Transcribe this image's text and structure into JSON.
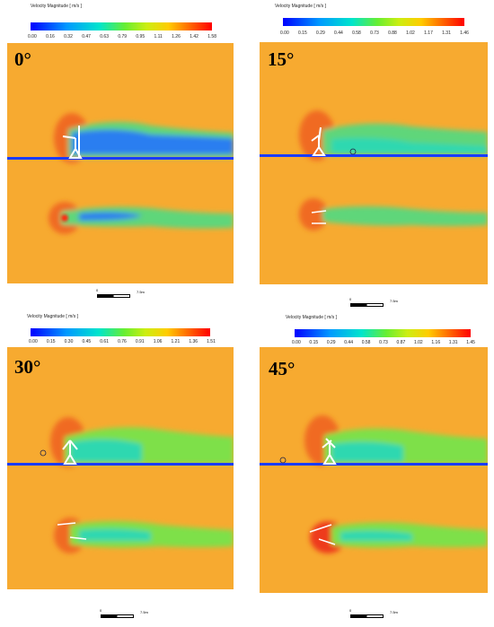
{
  "panels": [
    {
      "id": "p0",
      "angle_label": "0°",
      "colorbar": {
        "title": "Velocity Magnitude [ m/s ]",
        "ticks": [
          "0.00",
          "0.16",
          "0.32",
          "0.47",
          "0.63",
          "0.79",
          "0.95",
          "1.11",
          "1.26",
          "1.42",
          "1.58"
        ]
      },
      "scale": {
        "start": "0",
        "end": "7.5m"
      }
    },
    {
      "id": "p15",
      "angle_label": "15°",
      "colorbar": {
        "title": "Velocity Magnitude [ m/s ]",
        "ticks": [
          "0.00",
          "0.15",
          "0.29",
          "0.44",
          "0.58",
          "0.73",
          "0.88",
          "1.02",
          "1.17",
          "1.31",
          "1.46"
        ]
      },
      "scale": {
        "start": "0",
        "end": "7.5m"
      }
    },
    {
      "id": "p30",
      "angle_label": "30°",
      "colorbar": {
        "title": "Velocity Magnitude [ m/s ]",
        "ticks": [
          "0.00",
          "0.15",
          "0.30",
          "0.45",
          "0.61",
          "0.76",
          "0.91",
          "1.06",
          "1.21",
          "1.36",
          "1.51"
        ]
      },
      "scale": {
        "start": "0",
        "end": "7.5m"
      }
    },
    {
      "id": "p45",
      "angle_label": "45°",
      "colorbar": {
        "title": "Velocity Magnitude [ m/s ]",
        "ticks": [
          "0.00",
          "0.15",
          "0.29",
          "0.44",
          "0.58",
          "0.73",
          "0.87",
          "1.02",
          "1.16",
          "1.31",
          "1.45"
        ]
      },
      "scale": {
        "start": "0",
        "end": "7.5m"
      }
    }
  ],
  "colors": {
    "background_flow": "#f7aa30",
    "wake_low": "#1a5fe6",
    "wake_mid": "#2fd8b0",
    "wake_green": "#7ee04a",
    "stagnation": "#ee3a1a",
    "ground": "#1a3cff"
  }
}
